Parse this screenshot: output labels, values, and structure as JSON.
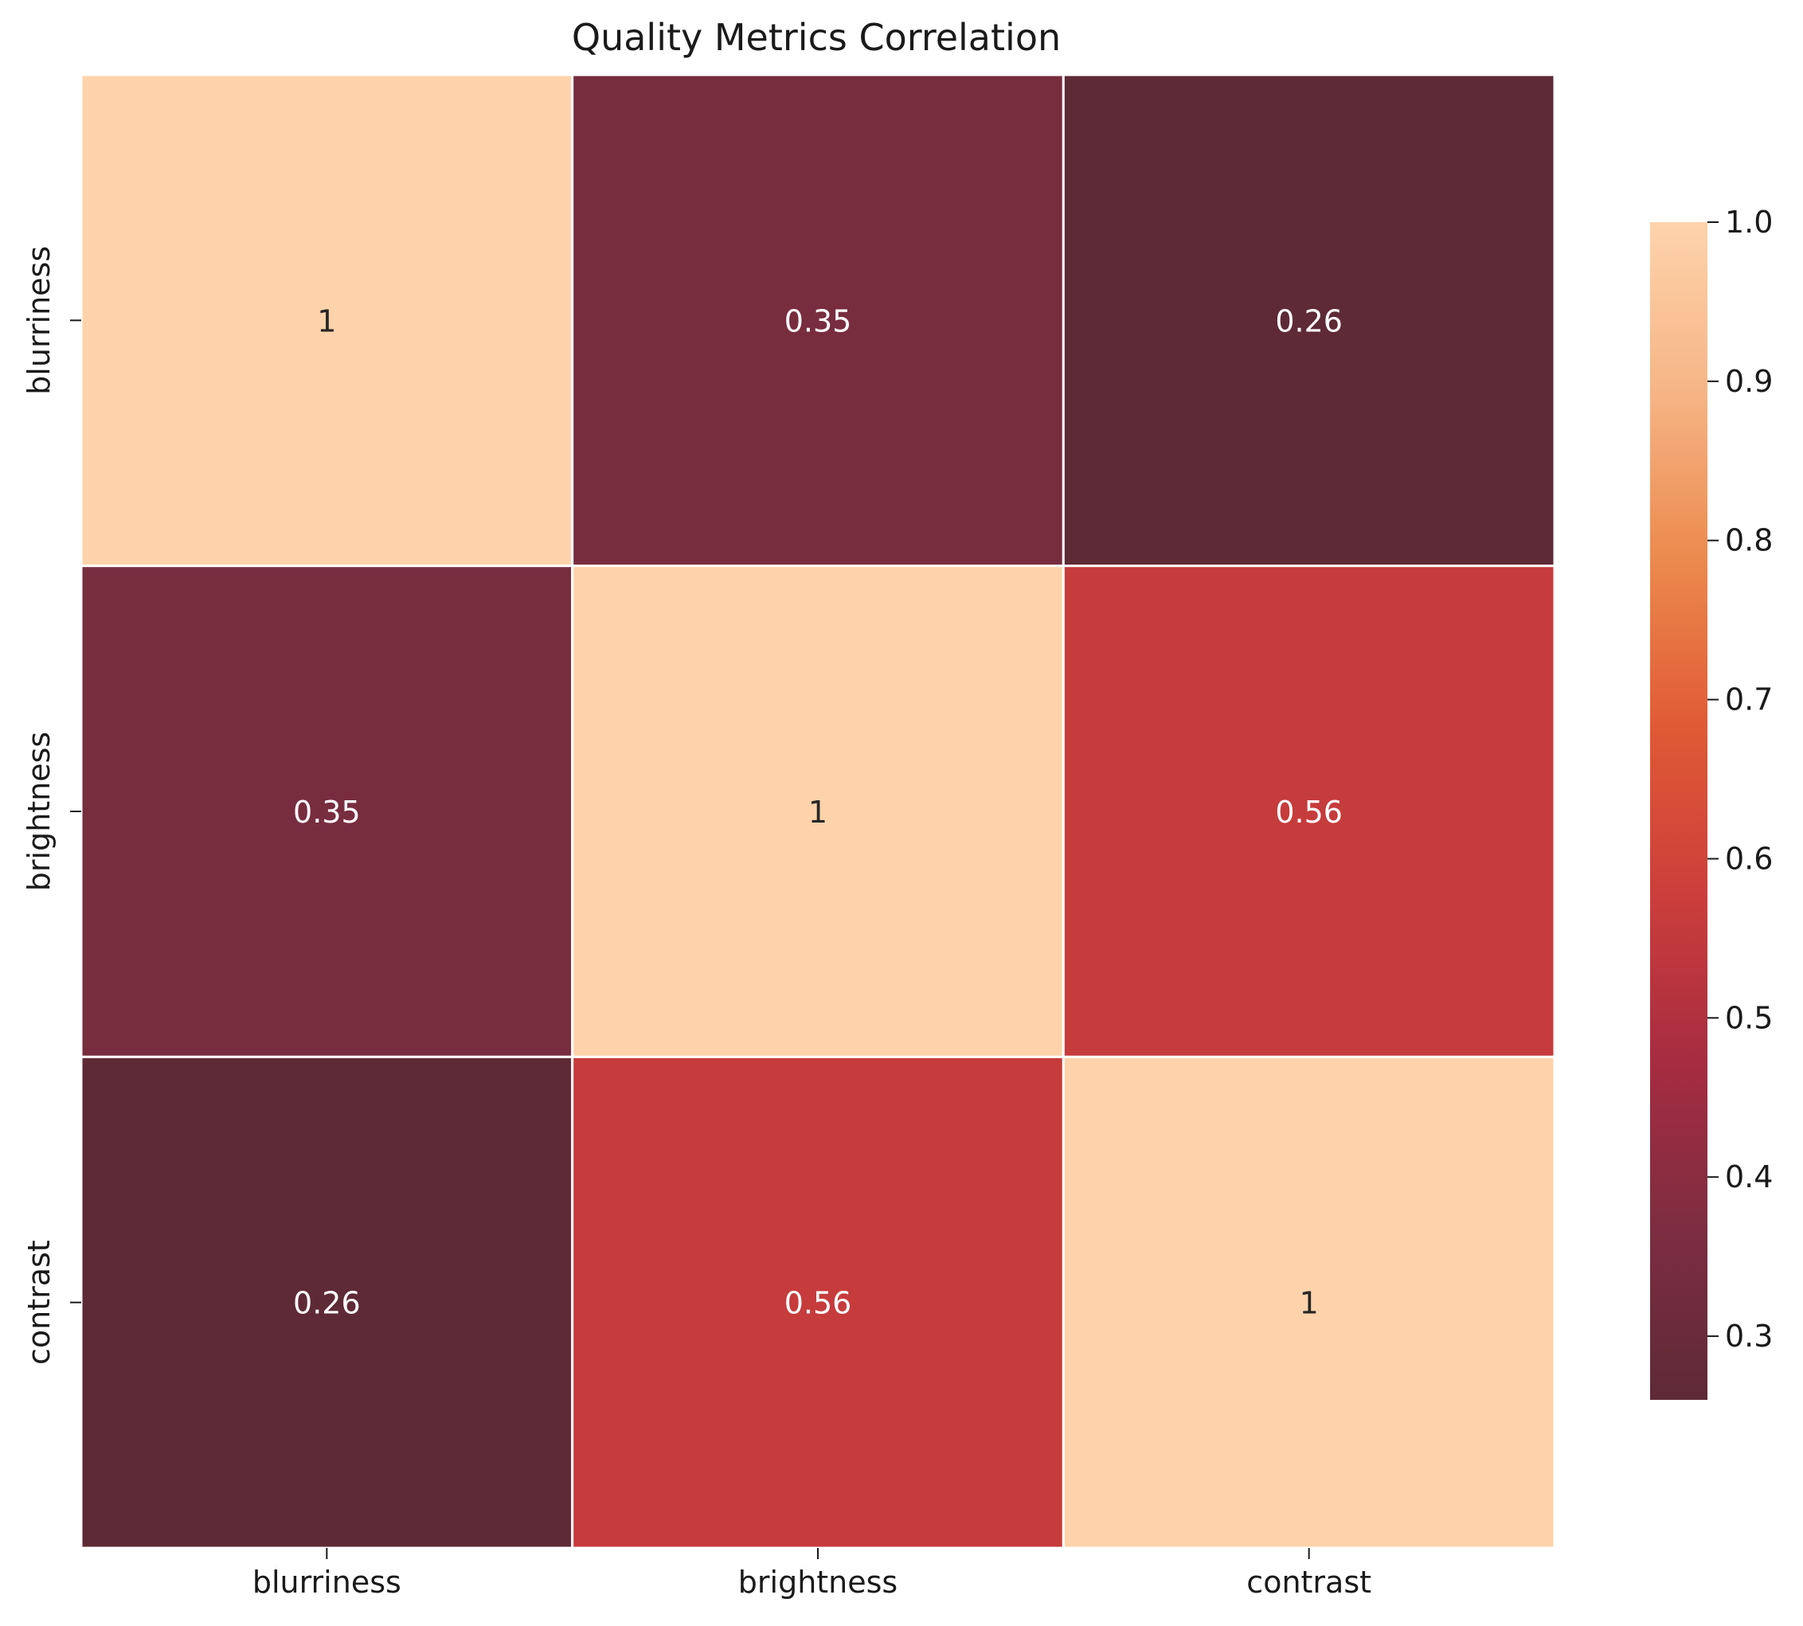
{
  "chart_data": {
    "type": "heatmap",
    "title": "Quality Metrics Correlation",
    "xlabel": "",
    "ylabel": "",
    "x_categories": [
      "blurriness",
      "brightness",
      "contrast"
    ],
    "y_categories": [
      "blurriness",
      "brightness",
      "contrast"
    ],
    "values": [
      [
        1.0,
        0.35,
        0.26
      ],
      [
        0.35,
        1.0,
        0.56
      ],
      [
        0.26,
        0.56,
        1.0
      ]
    ],
    "annotations": [
      [
        "1",
        "0.35",
        "0.26"
      ],
      [
        "0.35",
        "1",
        "0.56"
      ],
      [
        "0.26",
        "0.56",
        "1"
      ]
    ],
    "colorbar": {
      "range": [
        0.26,
        1.0
      ],
      "ticks": [
        0.3,
        0.4,
        0.5,
        0.6,
        0.7,
        0.8,
        0.9,
        1.0
      ],
      "tick_labels": [
        "0.3",
        "0.4",
        "0.5",
        "0.6",
        "0.7",
        "0.8",
        "0.9",
        "1.0"
      ],
      "colormap_stops": [
        "#5e2a35",
        "#7d2d41",
        "#a62c41",
        "#cc3e3b",
        "#e05a35",
        "#ec8a4e",
        "#f6b586",
        "#fed3ab"
      ]
    },
    "grid": true,
    "grid_color": "#ffffff"
  }
}
